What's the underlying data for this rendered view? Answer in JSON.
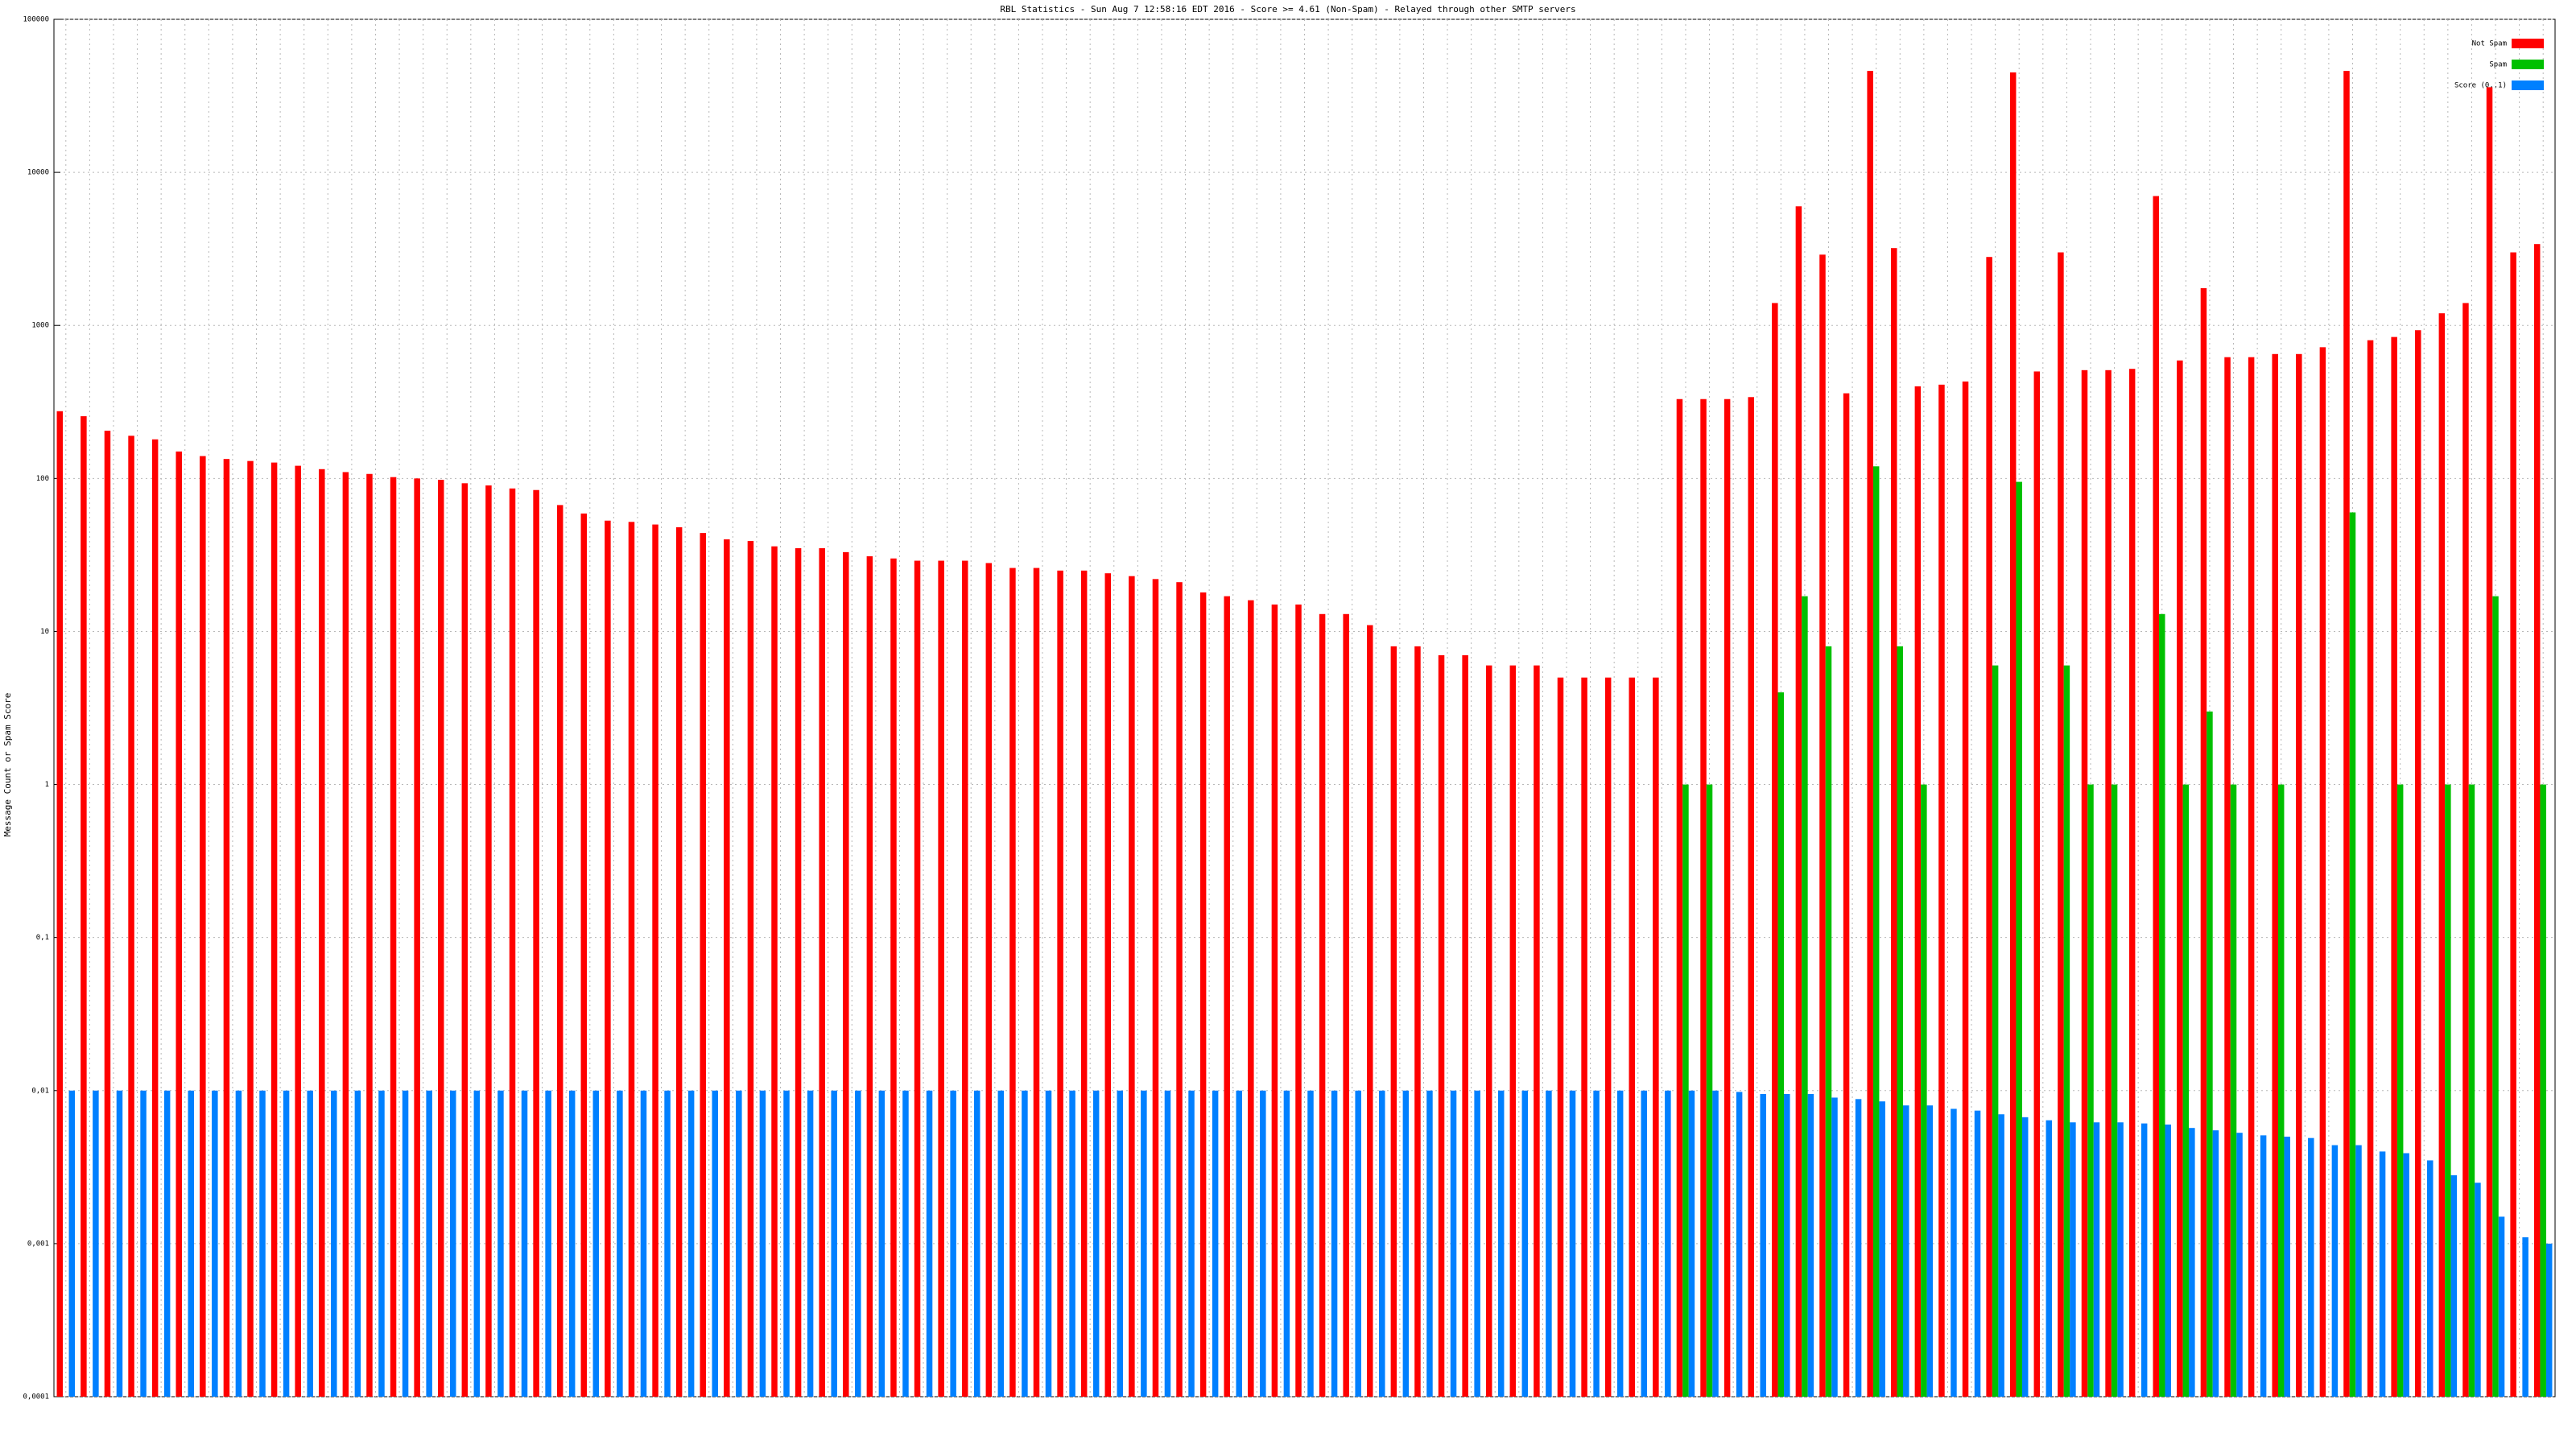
{
  "chart_data": {
    "type": "bar",
    "title": "RBL Statistics - Sun Aug  7 12:58:16 EDT 2016 - Score >= 4.61 (Non-Spam) - Relayed through other SMTP servers",
    "y_label": "Message Count or Spam Score",
    "log_y": true,
    "grid": true,
    "legend": "top-right",
    "ylim": [
      0.0001,
      100000
    ],
    "yticks": [
      {
        "value": 0.0001,
        "label": "0,0001"
      },
      {
        "value": 0.001,
        "label": "0,001"
      },
      {
        "value": 0.01,
        "label": "0,01"
      },
      {
        "value": 0.1,
        "label": "0,1"
      },
      1,
      10,
      100,
      1000,
      10000,
      100000
    ],
    "categories": [
      null,
      null,
      null,
      null,
      null,
      null,
      null,
      null,
      null,
      null,
      null,
      null,
      null,
      null,
      null,
      null,
      null,
      null,
      null,
      null,
      null,
      null,
      null,
      null,
      null,
      null,
      null,
      null,
      null,
      null,
      null,
      null,
      null,
      null,
      null,
      null,
      null,
      null,
      null,
      null,
      null,
      null,
      null,
      null,
      null,
      null,
      null,
      null,
      null,
      null,
      null,
      null,
      null,
      null,
      null,
      null,
      null,
      null,
      null,
      null,
      null,
      null,
      null,
      null,
      null,
      null,
      null,
      null,
      null,
      null,
      null,
      null,
      null,
      null,
      null,
      null,
      null,
      null,
      null,
      null,
      null,
      null,
      null,
      null,
      null,
      null,
      null,
      null,
      null,
      null,
      null,
      null,
      null,
      null,
      null,
      null,
      null,
      null,
      null,
      null,
      null,
      null,
      null,
      null,
      null
    ],
    "series": [
      {
        "name": "Not Spam",
        "color": "#ff0000",
        "values": [
          275,
          255,
          205,
          190,
          180,
          150,
          140,
          134,
          130,
          127,
          121,
          115,
          110,
          107,
          102,
          100,
          98,
          93,
          90,
          86,
          84,
          67,
          59,
          53,
          52,
          50,
          48,
          44,
          40,
          39,
          36,
          35,
          35,
          33,
          31,
          30,
          29,
          29,
          29,
          28,
          26,
          26,
          25,
          25,
          24,
          23,
          22,
          21,
          18,
          17,
          16,
          15,
          15,
          13,
          13,
          11,
          8,
          8,
          7,
          7,
          6,
          6,
          6,
          5,
          5,
          5,
          5,
          5,
          330,
          330,
          330,
          340,
          1400,
          6000,
          2900,
          360,
          46000,
          3200,
          400,
          410,
          430,
          2800,
          45000,
          500,
          3000,
          510,
          510,
          520,
          7000,
          590,
          1750,
          620,
          620,
          650,
          650,
          720,
          46000,
          800,
          840,
          930,
          1200,
          1400,
          36000,
          3000,
          3400
        ]
      },
      {
        "name": "Spam",
        "color": "#00c000",
        "values": [
          null,
          null,
          null,
          null,
          null,
          null,
          null,
          null,
          null,
          null,
          null,
          null,
          null,
          null,
          null,
          null,
          null,
          null,
          null,
          null,
          null,
          null,
          null,
          null,
          null,
          null,
          null,
          null,
          null,
          null,
          null,
          null,
          null,
          null,
          null,
          null,
          null,
          null,
          null,
          null,
          null,
          null,
          null,
          null,
          null,
          null,
          null,
          null,
          null,
          null,
          null,
          null,
          null,
          null,
          null,
          null,
          null,
          null,
          null,
          null,
          null,
          null,
          null,
          null,
          null,
          null,
          null,
          null,
          1,
          1,
          null,
          null,
          4,
          17,
          8,
          null,
          120,
          8,
          1,
          null,
          null,
          6,
          95,
          null,
          6,
          1,
          1,
          null,
          13,
          1,
          3,
          1,
          null,
          1,
          null,
          null,
          60,
          null,
          1,
          null,
          1,
          1,
          17,
          null,
          1
        ]
      },
      {
        "name": "Score (0..1)",
        "color": "#0080ff",
        "values": [
          0.01,
          0.01,
          0.01,
          0.01,
          0.01,
          0.01,
          0.01,
          0.01,
          0.01,
          0.01,
          0.01,
          0.01,
          0.01,
          0.01,
          0.01,
          0.01,
          0.01,
          0.01,
          0.01,
          0.01,
          0.01,
          0.01,
          0.01,
          0.01,
          0.01,
          0.01,
          0.01,
          0.01,
          0.01,
          0.01,
          0.01,
          0.01,
          0.01,
          0.01,
          0.01,
          0.01,
          0.01,
          0.01,
          0.01,
          0.01,
          0.01,
          0.01,
          0.01,
          0.01,
          0.01,
          0.01,
          0.01,
          0.01,
          0.01,
          0.01,
          0.01,
          0.01,
          0.01,
          0.01,
          0.01,
          0.01,
          0.01,
          0.01,
          0.01,
          0.01,
          0.01,
          0.01,
          0.01,
          0.01,
          0.01,
          0.01,
          0.01,
          0.01,
          0.01,
          0.01,
          0.0098,
          0.0095,
          0.0095,
          0.0095,
          0.009,
          0.0088,
          0.0085,
          0.008,
          0.008,
          0.0076,
          0.0074,
          0.007,
          0.0067,
          0.0064,
          0.0062,
          0.0062,
          0.0062,
          0.0061,
          0.006,
          0.0057,
          0.0055,
          0.0053,
          0.0051,
          0.005,
          0.0049,
          0.0044,
          0.0044,
          0.004,
          0.0039,
          0.0035,
          0.0028,
          0.0025,
          0.0015,
          0.0011,
          0.001
        ]
      }
    ]
  }
}
